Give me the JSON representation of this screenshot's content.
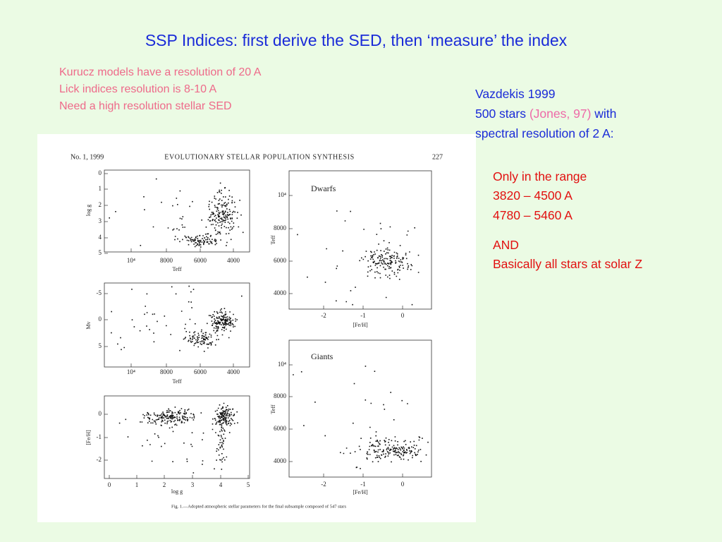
{
  "title": "SSP Indices: first derive the SED, then ‘measure’ the index",
  "left_notes": [
    "Kurucz models have a resolution of 20 A",
    "Lick indices resolution is 8-10 A",
    "Need a high resolution stellar SED"
  ],
  "right_block": {
    "line1": "Vazdekis 1999",
    "line2_start": "500 stars ",
    "line2_citation": "(Jones, 97)",
    "line2_end": " with",
    "line3": "spectral resolution of 2 A:"
  },
  "range_notes": [
    "Only in the range",
    "3820 – 4500 A",
    "4780 – 5460 A"
  ],
  "and_notes": [
    "AND",
    "Basically all stars at solar Z"
  ],
  "figure": {
    "header": {
      "left": "No. 1, 1999",
      "center": "EVOLUTIONARY STELLAR POPULATION SYNTHESIS",
      "right": "227"
    },
    "panels": [
      {
        "y_label": "log g",
        "x_label": "Teff",
        "y_ticks": [
          "0",
          "1",
          "2",
          "3",
          "4",
          "5"
        ],
        "x_ticks": [
          "10⁴",
          "8000",
          "6000",
          "4000"
        ]
      },
      {
        "y_label": "Mv",
        "x_label": "Teff",
        "y_ticks": [
          "-5",
          "0",
          "5"
        ],
        "x_ticks": [
          "10⁴",
          "8000",
          "6000",
          "4000"
        ]
      },
      {
        "y_label": "[Fe/H]",
        "x_label": "log g",
        "y_ticks": [
          "0",
          "-1",
          "-2"
        ],
        "x_ticks": [
          "0",
          "1",
          "2",
          "3",
          "4",
          "5"
        ]
      },
      {
        "tag": "Dwarfs",
        "y_label": "Teff",
        "x_label": "[Fe/H]",
        "y_ticks": [
          "10⁴",
          "8000",
          "6000",
          "4000"
        ],
        "x_ticks": [
          "-2",
          "-1",
          "0"
        ]
      },
      {
        "tag": "Giants",
        "y_label": "Teff",
        "x_label": "[Fe/H]",
        "y_ticks": [
          "10⁴",
          "8000",
          "6000",
          "4000"
        ],
        "x_ticks": [
          "-2",
          "-1",
          "0"
        ]
      }
    ],
    "caption": "Fig. 1.—Adopted atmospheric stellar parameters for the final subsample composed of 547 stars"
  }
}
